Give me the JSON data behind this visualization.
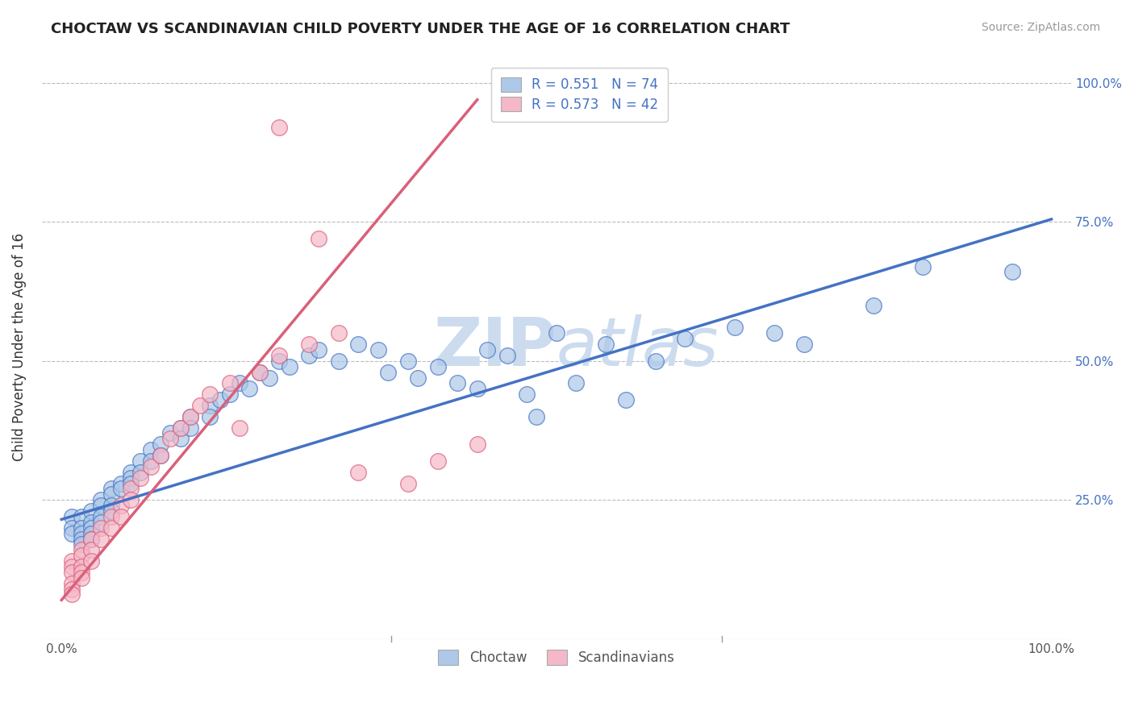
{
  "title": "CHOCTAW VS SCANDINAVIAN CHILD POVERTY UNDER THE AGE OF 16 CORRELATION CHART",
  "source_text": "Source: ZipAtlas.com",
  "ylabel": "Child Poverty Under the Age of 16",
  "legend_label_1": "R = 0.551   N = 74",
  "legend_label_2": "R = 0.573   N = 42",
  "choctaw_color": "#adc8e8",
  "scandinavian_color": "#f5b8c8",
  "choctaw_line_color": "#4472c4",
  "scandinavian_line_color": "#d9607a",
  "watermark_color": "#ccdcee",
  "background_color": "#ffffff",
  "grid_color": "#bbbbbb",
  "choctaw_scatter": [
    [
      0.01,
      0.22
    ],
    [
      0.01,
      0.2
    ],
    [
      0.01,
      0.19
    ],
    [
      0.02,
      0.22
    ],
    [
      0.02,
      0.2
    ],
    [
      0.02,
      0.19
    ],
    [
      0.02,
      0.18
    ],
    [
      0.02,
      0.17
    ],
    [
      0.03,
      0.23
    ],
    [
      0.03,
      0.21
    ],
    [
      0.03,
      0.2
    ],
    [
      0.03,
      0.19
    ],
    [
      0.03,
      0.18
    ],
    [
      0.04,
      0.25
    ],
    [
      0.04,
      0.24
    ],
    [
      0.04,
      0.22
    ],
    [
      0.04,
      0.21
    ],
    [
      0.05,
      0.27
    ],
    [
      0.05,
      0.26
    ],
    [
      0.05,
      0.24
    ],
    [
      0.05,
      0.23
    ],
    [
      0.06,
      0.28
    ],
    [
      0.06,
      0.27
    ],
    [
      0.07,
      0.3
    ],
    [
      0.07,
      0.29
    ],
    [
      0.07,
      0.28
    ],
    [
      0.08,
      0.32
    ],
    [
      0.08,
      0.3
    ],
    [
      0.09,
      0.34
    ],
    [
      0.09,
      0.32
    ],
    [
      0.1,
      0.35
    ],
    [
      0.1,
      0.33
    ],
    [
      0.11,
      0.37
    ],
    [
      0.12,
      0.38
    ],
    [
      0.12,
      0.36
    ],
    [
      0.13,
      0.4
    ],
    [
      0.13,
      0.38
    ],
    [
      0.15,
      0.42
    ],
    [
      0.15,
      0.4
    ],
    [
      0.16,
      0.43
    ],
    [
      0.17,
      0.44
    ],
    [
      0.18,
      0.46
    ],
    [
      0.19,
      0.45
    ],
    [
      0.2,
      0.48
    ],
    [
      0.21,
      0.47
    ],
    [
      0.22,
      0.5
    ],
    [
      0.23,
      0.49
    ],
    [
      0.25,
      0.51
    ],
    [
      0.26,
      0.52
    ],
    [
      0.28,
      0.5
    ],
    [
      0.3,
      0.53
    ],
    [
      0.32,
      0.52
    ],
    [
      0.33,
      0.48
    ],
    [
      0.35,
      0.5
    ],
    [
      0.36,
      0.47
    ],
    [
      0.38,
      0.49
    ],
    [
      0.4,
      0.46
    ],
    [
      0.42,
      0.45
    ],
    [
      0.43,
      0.52
    ],
    [
      0.45,
      0.51
    ],
    [
      0.47,
      0.44
    ],
    [
      0.48,
      0.4
    ],
    [
      0.5,
      0.55
    ],
    [
      0.52,
      0.46
    ],
    [
      0.55,
      0.53
    ],
    [
      0.57,
      0.43
    ],
    [
      0.6,
      0.5
    ],
    [
      0.63,
      0.54
    ],
    [
      0.68,
      0.56
    ],
    [
      0.72,
      0.55
    ],
    [
      0.75,
      0.53
    ],
    [
      0.82,
      0.6
    ],
    [
      0.87,
      0.67
    ],
    [
      0.96,
      0.66
    ]
  ],
  "scandinavian_scatter": [
    [
      0.01,
      0.14
    ],
    [
      0.01,
      0.13
    ],
    [
      0.01,
      0.12
    ],
    [
      0.01,
      0.1
    ],
    [
      0.01,
      0.09
    ],
    [
      0.01,
      0.08
    ],
    [
      0.02,
      0.16
    ],
    [
      0.02,
      0.15
    ],
    [
      0.02,
      0.13
    ],
    [
      0.02,
      0.12
    ],
    [
      0.02,
      0.11
    ],
    [
      0.03,
      0.18
    ],
    [
      0.03,
      0.16
    ],
    [
      0.03,
      0.14
    ],
    [
      0.04,
      0.2
    ],
    [
      0.04,
      0.18
    ],
    [
      0.05,
      0.22
    ],
    [
      0.05,
      0.2
    ],
    [
      0.06,
      0.24
    ],
    [
      0.06,
      0.22
    ],
    [
      0.07,
      0.27
    ],
    [
      0.07,
      0.25
    ],
    [
      0.08,
      0.29
    ],
    [
      0.09,
      0.31
    ],
    [
      0.1,
      0.33
    ],
    [
      0.11,
      0.36
    ],
    [
      0.12,
      0.38
    ],
    [
      0.13,
      0.4
    ],
    [
      0.14,
      0.42
    ],
    [
      0.15,
      0.44
    ],
    [
      0.17,
      0.46
    ],
    [
      0.18,
      0.38
    ],
    [
      0.2,
      0.48
    ],
    [
      0.22,
      0.51
    ],
    [
      0.25,
      0.53
    ],
    [
      0.28,
      0.55
    ],
    [
      0.3,
      0.3
    ],
    [
      0.35,
      0.28
    ],
    [
      0.38,
      0.32
    ],
    [
      0.42,
      0.35
    ],
    [
      0.22,
      0.92
    ],
    [
      0.26,
      0.72
    ]
  ],
  "choctaw_line_x": [
    0.0,
    1.0
  ],
  "choctaw_line_y": [
    0.215,
    0.755
  ],
  "scandinavian_line_x": [
    0.0,
    0.42
  ],
  "scandinavian_line_y": [
    0.07,
    0.97
  ],
  "xlim": [
    -0.02,
    1.02
  ],
  "ylim": [
    0.0,
    1.05
  ],
  "yticks": [
    0.25,
    0.5,
    0.75,
    1.0
  ],
  "xticks": [
    0.0,
    1.0
  ]
}
